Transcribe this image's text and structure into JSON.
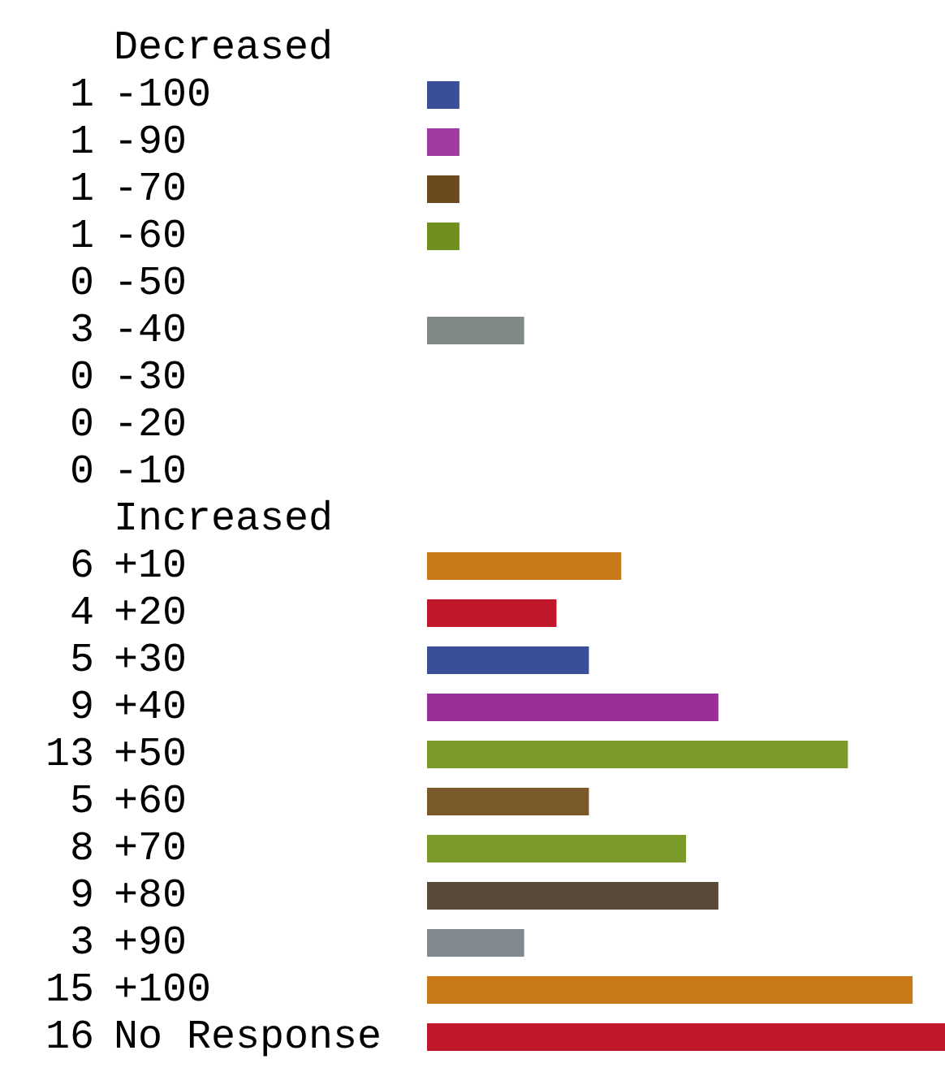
{
  "chart_data": {
    "type": "bar",
    "orientation": "horizontal",
    "categories": [
      "Decreased",
      "-100",
      "-90",
      "-70",
      "-60",
      "-50",
      "-40",
      "-30",
      "-20",
      "-10",
      "Increased",
      "+10",
      "+20",
      "+30",
      "+40",
      "+50",
      "+60",
      "+70",
      "+80",
      "+90",
      "+100",
      "No Response"
    ],
    "values": [
      null,
      1,
      1,
      1,
      1,
      0,
      3,
      0,
      0,
      0,
      null,
      6,
      4,
      5,
      9,
      13,
      5,
      8,
      9,
      3,
      15,
      16
    ],
    "colors": [
      "#808080",
      "#3a4f9a",
      "#a03aa0",
      "#6b4a1f",
      "#6f8f1f",
      "#808080",
      "#808888",
      "#808080",
      "#808080",
      "#808080",
      "#808080",
      "#c87a1a",
      "#c0182a",
      "#3a4f9a",
      "#9a2f9a",
      "#7a9a2a",
      "#7a5a2a",
      "#7a9a2a",
      "#5a4a3a",
      "#808890",
      "#c87a1a",
      "#c0182a"
    ],
    "xlim": [
      0,
      16
    ],
    "data_labels": true,
    "tick_labels": "y",
    "legend": false
  }
}
